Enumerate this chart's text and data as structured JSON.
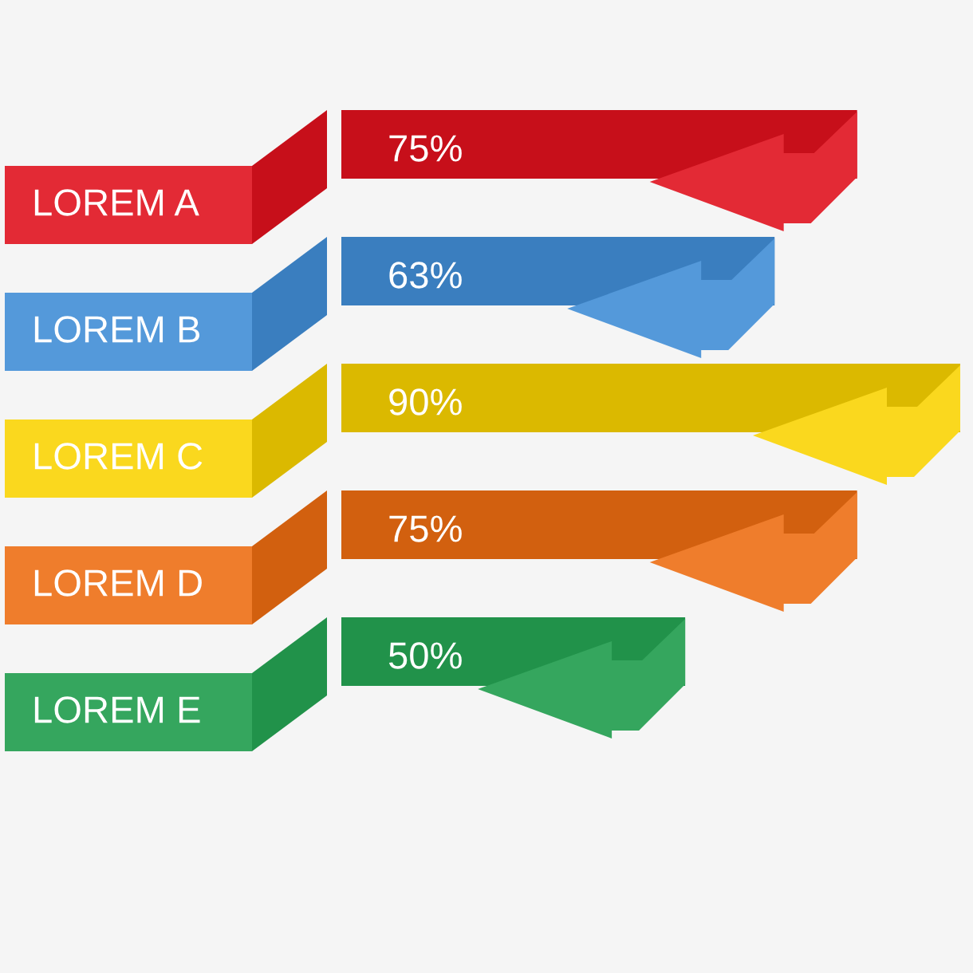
{
  "chart_data": {
    "type": "bar",
    "orientation": "horizontal",
    "categories": [
      "LOREM A",
      "LOREM B",
      "LOREM C",
      "LOREM D",
      "LOREM E"
    ],
    "values": [
      75,
      63,
      90,
      75,
      50
    ],
    "colors": [
      "#c70f1a",
      "#3a7ebf",
      "#dbb900",
      "#d2600f",
      "#21924a"
    ],
    "value_labels": [
      "75%",
      "63%",
      "90%",
      "75%",
      "50%"
    ]
  }
}
